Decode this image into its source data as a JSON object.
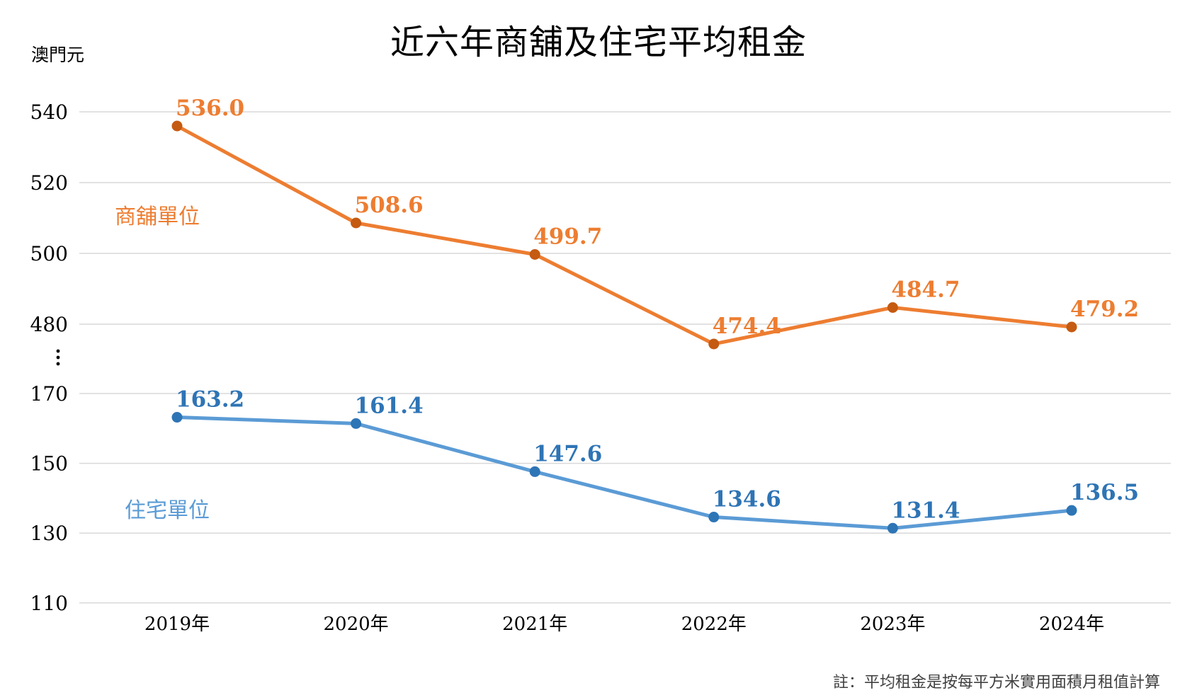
{
  "title": "近六年商舖及住宅平均租金",
  "y_axis_unit": "澳門元",
  "note": "註：平均租金是按每平方米實用面積月租值計算",
  "chart_data": {
    "type": "line",
    "title": "近六年商舖及住宅平均租金",
    "ylabel": "澳門元",
    "categories": [
      "2019年",
      "2020年",
      "2021年",
      "2022年",
      "2023年",
      "2024年"
    ],
    "series": [
      {
        "name": "商舖單位",
        "values": [
          536.0,
          508.6,
          499.7,
          474.4,
          484.7,
          479.2
        ],
        "labels": [
          "536.0",
          "508.6",
          "499.7",
          "474.4",
          "484.7",
          "479.2"
        ],
        "line_color": "#ED7D31",
        "marker_color": "#C55A11",
        "label_color": "#ED7D31"
      },
      {
        "name": "住宅單位",
        "values": [
          163.2,
          161.4,
          147.6,
          134.6,
          131.4,
          136.5
        ],
        "labels": [
          "163.2",
          "161.4",
          "147.6",
          "134.6",
          "131.4",
          "136.5"
        ],
        "line_color": "#5B9BD5",
        "marker_color": "#2E75B6",
        "label_color": "#2E74B5"
      }
    ],
    "y_ticks_upper": [
      540,
      520,
      500,
      480
    ],
    "y_ticks_lower": [
      170,
      150,
      130,
      110
    ],
    "axis_break": true,
    "grid": true,
    "gridline_color": "#D9D9D9",
    "legend_position": "inline-labels",
    "note": "註：平均租金是按每平方米實用面積月租值計算"
  }
}
